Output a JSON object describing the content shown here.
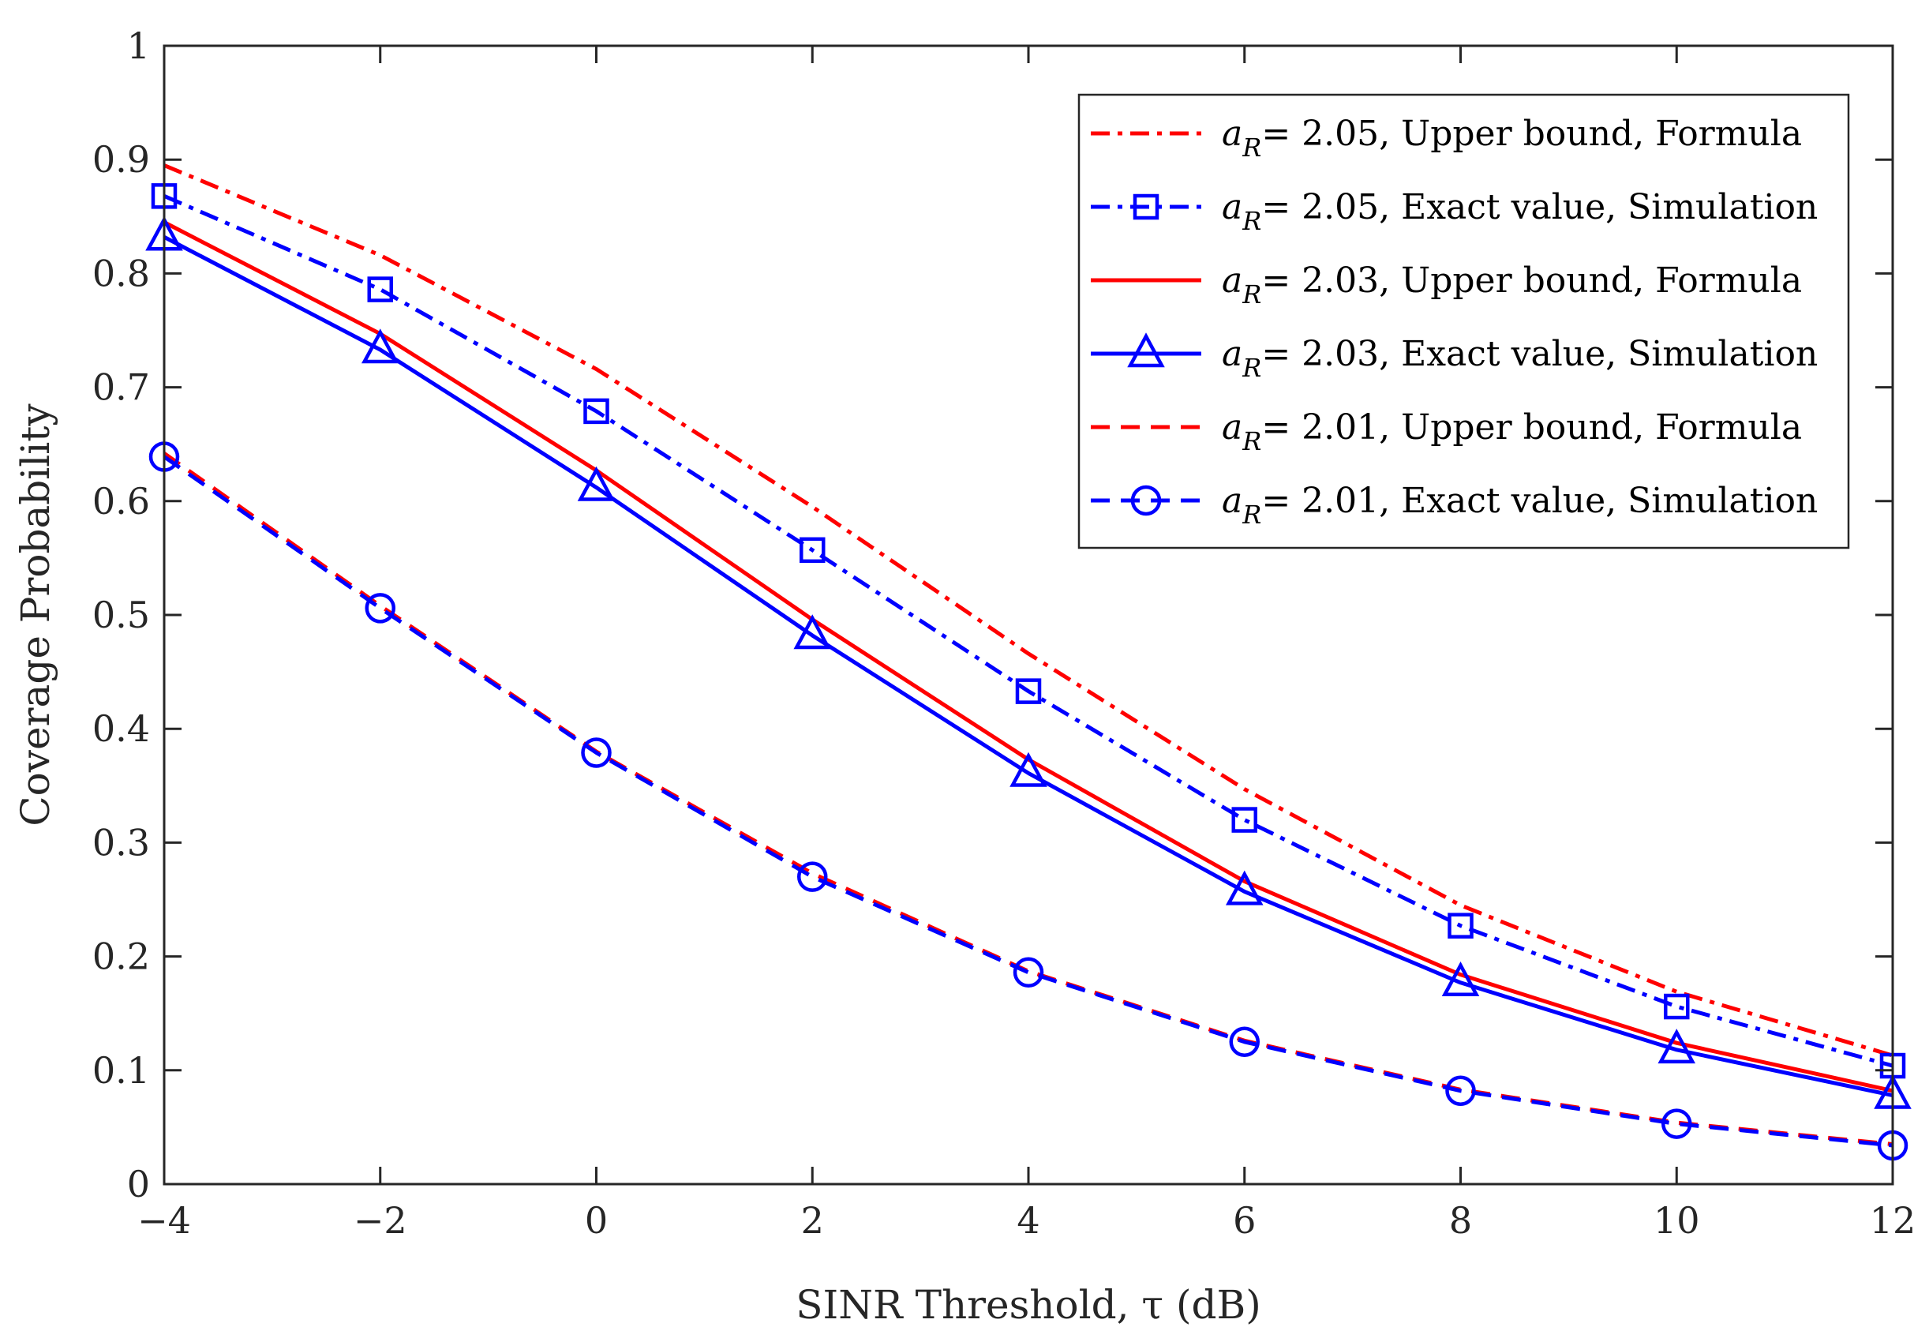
{
  "chart_data": {
    "type": "line",
    "title": "",
    "xlabel": "SINR Threshold, τ (dB)",
    "ylabel": "Coverage Probability",
    "x": [
      -4,
      -2,
      0,
      2,
      4,
      6,
      8,
      10,
      12
    ],
    "xlim": [
      -4,
      12
    ],
    "ylim": [
      0,
      1
    ],
    "xticks": [
      -4,
      -2,
      0,
      2,
      4,
      6,
      8,
      10,
      12
    ],
    "xtick_labels": [
      "−4",
      "−2",
      "0",
      "2",
      "4",
      "6",
      "8",
      "10",
      "12"
    ],
    "yticks": [
      0,
      0.1,
      0.2,
      0.3,
      0.4,
      0.5,
      0.6,
      0.7,
      0.8,
      0.9,
      1
    ],
    "ytick_labels": [
      "0",
      "0.1",
      "0.2",
      "0.3",
      "0.4",
      "0.5",
      "0.6",
      "0.7",
      "0.8",
      "0.9",
      "1"
    ],
    "grid": false,
    "legend_position": "top-right",
    "series": [
      {
        "name": "a_R= 2.05, Upper bound, Formula",
        "legend_var": "a",
        "legend_sub": "R",
        "legend_rest": "= 2.05, Upper bound, Formula",
        "color": "#ff0000",
        "style": "dashdot",
        "marker": "none",
        "values": [
          0.895,
          0.816,
          0.716,
          0.595,
          0.466,
          0.347,
          0.245,
          0.169,
          0.113
        ]
      },
      {
        "name": "a_R= 2.05, Exact value, Simulation",
        "legend_var": "a",
        "legend_sub": "R",
        "legend_rest": "= 2.05, Exact value, Simulation",
        "color": "#0000ff",
        "style": "dashdot",
        "marker": "square",
        "values": [
          0.868,
          0.786,
          0.679,
          0.557,
          0.433,
          0.32,
          0.227,
          0.156,
          0.104
        ]
      },
      {
        "name": "a_R= 2.03, Upper bound, Formula",
        "legend_var": "a",
        "legend_sub": "R",
        "legend_rest": "= 2.03, Upper bound, Formula",
        "color": "#ff0000",
        "style": "solid",
        "marker": "none",
        "values": [
          0.845,
          0.747,
          0.627,
          0.496,
          0.373,
          0.266,
          0.184,
          0.124,
          0.082
        ]
      },
      {
        "name": "a_R= 2.03, Exact value, Simulation",
        "legend_var": "a",
        "legend_sub": "R",
        "legend_rest": "= 2.03, Exact value, Simulation",
        "color": "#0000ff",
        "style": "solid",
        "marker": "triangle",
        "values": [
          0.832,
          0.733,
          0.612,
          0.482,
          0.361,
          0.257,
          0.177,
          0.118,
          0.078
        ]
      },
      {
        "name": "a_R= 2.01, Upper bound, Formula",
        "legend_var": "a",
        "legend_sub": "R",
        "legend_rest": "= 2.01, Upper bound, Formula",
        "color": "#ff0000",
        "style": "dashed",
        "marker": "none",
        "values": [
          0.642,
          0.508,
          0.38,
          0.273,
          0.187,
          0.126,
          0.083,
          0.054,
          0.035
        ]
      },
      {
        "name": "a_R= 2.01, Exact value, Simulation",
        "legend_var": "a",
        "legend_sub": "R",
        "legend_rest": "= 2.01, Exact value, Simulation",
        "color": "#0000ff",
        "style": "dashed",
        "marker": "circle",
        "values": [
          0.639,
          0.506,
          0.379,
          0.27,
          0.186,
          0.125,
          0.082,
          0.053,
          0.034
        ]
      }
    ]
  }
}
